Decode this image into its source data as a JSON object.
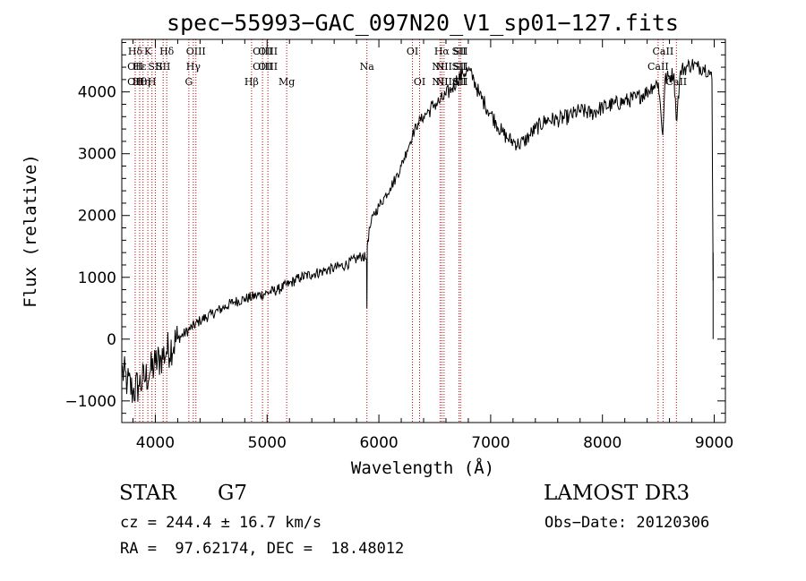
{
  "chart_data": {
    "type": "line",
    "title": "spec−55993−GAC_097N20_V1_sp01−127.fits",
    "xlabel": "Wavelength (Å)",
    "ylabel": "Flux (relative)",
    "xlim": [
      3700,
      9100
    ],
    "ylim": [
      -1350,
      4850
    ],
    "xticks": [
      4000,
      5000,
      6000,
      7000,
      8000,
      9000
    ],
    "xtick_labels": [
      "4000",
      "5000",
      "6000",
      "7000",
      "8000",
      "9000"
    ],
    "yticks": [
      -1000,
      0,
      1000,
      2000,
      3000,
      4000
    ],
    "ytick_labels": [
      "−1000",
      "0",
      "1000",
      "2000",
      "3000",
      "4000"
    ],
    "series": [
      {
        "name": "spectrum",
        "color": "#000000",
        "x": [
          3700,
          3750,
          3800,
          3850,
          3900,
          3950,
          4000,
          4050,
          4100,
          4200,
          4300,
          4400,
          4500,
          4600,
          4700,
          4800,
          4900,
          5000,
          5100,
          5200,
          5300,
          5400,
          5500,
          5600,
          5700,
          5800,
          5850,
          5890,
          5893,
          5896,
          5900,
          5920,
          5950,
          6000,
          6050,
          6100,
          6150,
          6200,
          6250,
          6300,
          6350,
          6400,
          6450,
          6500,
          6550,
          6600,
          6650,
          6700,
          6750,
          6800,
          6850,
          6900,
          6950,
          7000,
          7050,
          7100,
          7150,
          7200,
          7250,
          7300,
          7350,
          7400,
          7500,
          7600,
          7700,
          7800,
          7900,
          8000,
          8100,
          8200,
          8300,
          8400,
          8450,
          8500,
          8540,
          8560,
          8600,
          8640,
          8660,
          8700,
          8750,
          8800,
          8850,
          8900,
          8950,
          8980,
          8990
        ],
        "y": [
          -500,
          -700,
          -850,
          -750,
          -650,
          -550,
          -400,
          -300,
          -200,
          0,
          150,
          300,
          400,
          500,
          600,
          650,
          700,
          750,
          800,
          900,
          1000,
          1050,
          1100,
          1150,
          1200,
          1300,
          1350,
          1300,
          500,
          1500,
          1600,
          1800,
          2000,
          2150,
          2300,
          2450,
          2600,
          2800,
          3050,
          3300,
          3500,
          3600,
          3700,
          3800,
          3850,
          3950,
          4050,
          4200,
          4300,
          4350,
          4200,
          3950,
          3800,
          3650,
          3500,
          3350,
          3250,
          3200,
          3150,
          3200,
          3300,
          3400,
          3550,
          3550,
          3600,
          3700,
          3650,
          3750,
          3800,
          3850,
          3900,
          4000,
          4100,
          4150,
          3300,
          4200,
          4250,
          4300,
          3550,
          4350,
          4400,
          4450,
          4400,
          4400,
          4350,
          4200,
          950
        ]
      }
    ],
    "lines": [
      {
        "x": 3820,
        "labels": [
          "Hδ",
          "OII",
          "OII"
        ]
      },
      {
        "x": 3860,
        "labels": [
          "",
          "Hε",
          "Hθ"
        ]
      },
      {
        "x": 3890,
        "labels": [
          "",
          "",
          "Hη"
        ]
      },
      {
        "x": 3933,
        "labels": [
          "K",
          "",
          ""
        ]
      },
      {
        "x": 3970,
        "labels": [
          "",
          "",
          "H"
        ]
      },
      {
        "x": 4000,
        "labels": [
          "",
          "SII",
          ""
        ]
      },
      {
        "x": 4070,
        "labels": [
          "",
          "SII",
          ""
        ]
      },
      {
        "x": 4102,
        "labels": [
          "Hδ",
          "",
          ""
        ]
      },
      {
        "x": 4300,
        "labels": [
          "",
          "",
          "G"
        ]
      },
      {
        "x": 4340,
        "labels": [
          "",
          "Hγ",
          ""
        ]
      },
      {
        "x": 4363,
        "labels": [
          "OIII",
          "",
          ""
        ]
      },
      {
        "x": 4861,
        "labels": [
          "",
          "",
          "Hβ"
        ]
      },
      {
        "x": 4959,
        "labels": [
          "OIII",
          "OIII",
          ""
        ]
      },
      {
        "x": 5007,
        "labels": [
          "OIII",
          "OIII",
          ""
        ]
      },
      {
        "x": 5175,
        "labels": [
          "",
          "",
          "Mg"
        ]
      },
      {
        "x": 5893,
        "labels": [
          "",
          "Na",
          ""
        ]
      },
      {
        "x": 6300,
        "labels": [
          "OI",
          "",
          ""
        ]
      },
      {
        "x": 6364,
        "labels": [
          "",
          "",
          "OI"
        ]
      },
      {
        "x": 6548,
        "labels": [
          "",
          "NII",
          "NII"
        ]
      },
      {
        "x": 6563,
        "labels": [
          "Hα",
          "",
          ""
        ]
      },
      {
        "x": 6583,
        "labels": [
          "",
          "NII",
          "NII"
        ]
      },
      {
        "x": 6717,
        "labels": [
          "SII",
          "SII",
          "SII"
        ]
      },
      {
        "x": 6731,
        "labels": [
          "SII",
          "SII",
          "SII"
        ]
      },
      {
        "x": 8498,
        "labels": [
          "",
          "CaII",
          ""
        ]
      },
      {
        "x": 8542,
        "labels": [
          "CaII",
          "",
          ""
        ]
      },
      {
        "x": 8662,
        "labels": [
          "",
          "",
          "CaII"
        ]
      }
    ]
  },
  "info": {
    "object_class": "STAR",
    "subclass": "G7",
    "survey": "LAMOST DR3",
    "redshift": "cz = 244.4 ± 16.7 km/s",
    "obs_date": "Obs−Date: 20120306",
    "coords": "RA =  97.62174, DEC =  18.48012"
  }
}
